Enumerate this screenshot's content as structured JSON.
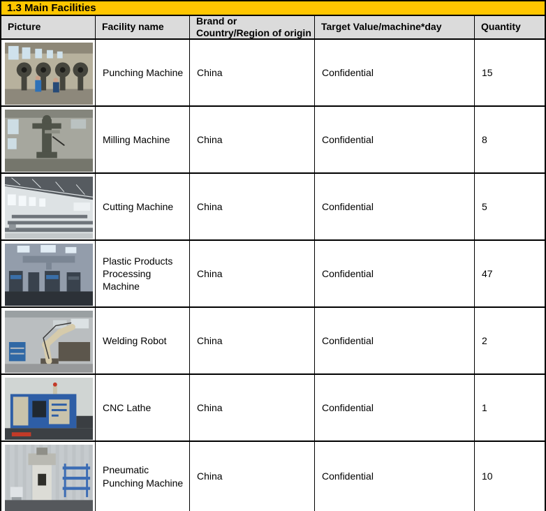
{
  "title": "1.3 Main Facilities",
  "colors": {
    "band": "#FFC600",
    "header_bg": "#DBDBDB",
    "border": "#000000",
    "text": "#000000"
  },
  "table": {
    "columns": [
      {
        "key": "picture",
        "label": "Picture"
      },
      {
        "key": "facility",
        "label": "Facility name"
      },
      {
        "key": "brand",
        "label": "Brand or\nCountry/Region of origin"
      },
      {
        "key": "target",
        "label": "Target Value/machine*day"
      },
      {
        "key": "quantity",
        "label": "Quantity"
      }
    ],
    "rows": [
      {
        "facility": "Punching Machine",
        "brand": "China",
        "target": "Confidential",
        "quantity": "15",
        "photo": {
          "name": "punching-machine-photo",
          "variant": 1,
          "palette": {
            "wall": "#b7b19d",
            "roof": "#8e8878",
            "window": "#cfe2ec",
            "machine": "#45453d",
            "floor": "#8d887b",
            "accent": "#2f72b8",
            "accent2": "#274a77"
          }
        }
      },
      {
        "facility": "Milling Machine",
        "brand": "China",
        "target": "Confidential",
        "quantity": "8",
        "photo": {
          "name": "milling-machine-photo",
          "variant": 2,
          "palette": {
            "wall": "#a6a79e",
            "roof": "#84857c",
            "window": "#cddde4",
            "machine": "#4f5349",
            "floor": "#75766c",
            "accent": "#3c4038",
            "accent2": "#8c8e84"
          }
        }
      },
      {
        "facility": "Cutting Machine",
        "brand": "China",
        "target": "Confidential",
        "quantity": "5",
        "photo": {
          "name": "cutting-machine-photo",
          "variant": 3,
          "palette": {
            "wall": "#dde2e4",
            "roof": "#565b60",
            "window": "#f4f8fa",
            "machine": "#6e747a",
            "floor": "#c3c8ca",
            "accent": "#8f959a",
            "accent2": "#a8aeb2"
          }
        }
      },
      {
        "facility": "Plastic Products Processing Machine",
        "brand": "China",
        "target": "Confidential",
        "quantity": "47",
        "photo": {
          "name": "plastic-products-processing-machine-photo",
          "variant": 4,
          "palette": {
            "wall": "#939dab",
            "roof": "#7b8694",
            "window": "#e2edf5",
            "machine": "#39424d",
            "floor": "#2c3137",
            "accent": "#3a6fa8",
            "accent2": "#55606c"
          }
        }
      },
      {
        "facility": "Welding Robot",
        "brand": "China",
        "target": "Confidential",
        "quantity": "2",
        "photo": {
          "name": "welding-robot-photo",
          "variant": 5,
          "palette": {
            "wall": "#babec0",
            "roof": "#9aa0a2",
            "window": "#dce2e4",
            "machine": "#5c564c",
            "floor": "#97999a",
            "accent": "#3068a5",
            "accent2": "#d6cbab"
          }
        }
      },
      {
        "facility": "CNC Lathe",
        "brand": "China",
        "target": "Confidential",
        "quantity": "1",
        "photo": {
          "name": "cnc-lathe-photo",
          "variant": 6,
          "palette": {
            "wall": "#d0d5d3",
            "roof": "#b9bec0",
            "window": "#e8ecea",
            "machine": "#2e5ea6",
            "floor": "#3c4044",
            "accent": "#c33a28",
            "accent2": "#c9c3ab",
            "dark": "#202830"
          }
        }
      },
      {
        "facility": "Pneumatic Punching Machine",
        "brand": "China",
        "target": "Confidential",
        "quantity": "10",
        "photo": {
          "name": "pneumatic-punching-machine-photo",
          "variant": 7,
          "palette": {
            "wall": "#c6cbce",
            "roof": "#aeb4b8",
            "window": "#e4e8ea",
            "machine": "#dcdcd6",
            "floor": "#55585c",
            "accent": "#3b6cb4",
            "accent2": "#c8a42c"
          }
        }
      }
    ]
  }
}
